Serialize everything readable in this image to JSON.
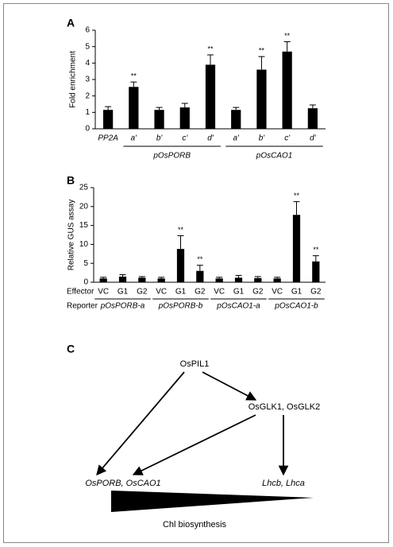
{
  "chart_data": [
    {
      "type": "bar",
      "panel_label": "A",
      "y_label": "Fold enrichment",
      "categories": [
        "PP2A",
        "a'",
        "b'",
        "c'",
        "d'",
        "a'",
        "b'",
        "c'",
        "d'"
      ],
      "groups": [
        "pOsPORB",
        "pOsCAO1"
      ],
      "values": [
        1.15,
        2.55,
        1.15,
        1.3,
        3.9,
        1.15,
        3.6,
        4.7,
        1.25
      ],
      "errors": [
        0.2,
        0.3,
        0.15,
        0.25,
        0.6,
        0.15,
        0.8,
        0.6,
        0.2
      ],
      "significance": [
        null,
        "**",
        null,
        null,
        "**",
        null,
        "**",
        "**",
        null
      ],
      "color": "#000000",
      "ylim": [
        0,
        6
      ],
      "yticks": [
        0,
        1,
        2,
        3,
        4,
        5,
        6
      ]
    },
    {
      "type": "bar",
      "panel_label": "B",
      "y_label": "Relative GUS assay",
      "categories": [
        "VC",
        "G1",
        "G2",
        "VC",
        "G1",
        "G2",
        "VC",
        "G1",
        "G2",
        "VC",
        "G1",
        "G2"
      ],
      "row_labels": [
        "Effector",
        "Reporter"
      ],
      "reporters": [
        "pOsPORB-a",
        "pOsPORB-b",
        "pOsCAO1-a",
        "pOsCAO1-b"
      ],
      "values": [
        1.0,
        1.5,
        1.2,
        1.0,
        8.8,
        3.0,
        1.0,
        1.2,
        1.1,
        1.0,
        17.8,
        5.5
      ],
      "errors": [
        0.3,
        0.5,
        0.3,
        0.3,
        3.5,
        1.5,
        0.3,
        0.6,
        0.4,
        0.3,
        3.5,
        1.5
      ],
      "significance": [
        null,
        null,
        null,
        null,
        "**",
        "**",
        null,
        null,
        null,
        null,
        "**",
        "**"
      ],
      "color": "#000000",
      "ylim": [
        0,
        25
      ],
      "yticks": [
        0,
        5,
        10,
        15,
        20,
        25
      ]
    }
  ],
  "diagram": {
    "panel_label": "C",
    "nodes": [
      "OsPIL1",
      "OsGLK1, OsGLK2",
      "OsPORB, OsCAO1",
      "Lhcb, Lhca"
    ],
    "output": "Chl biosynthesis"
  }
}
